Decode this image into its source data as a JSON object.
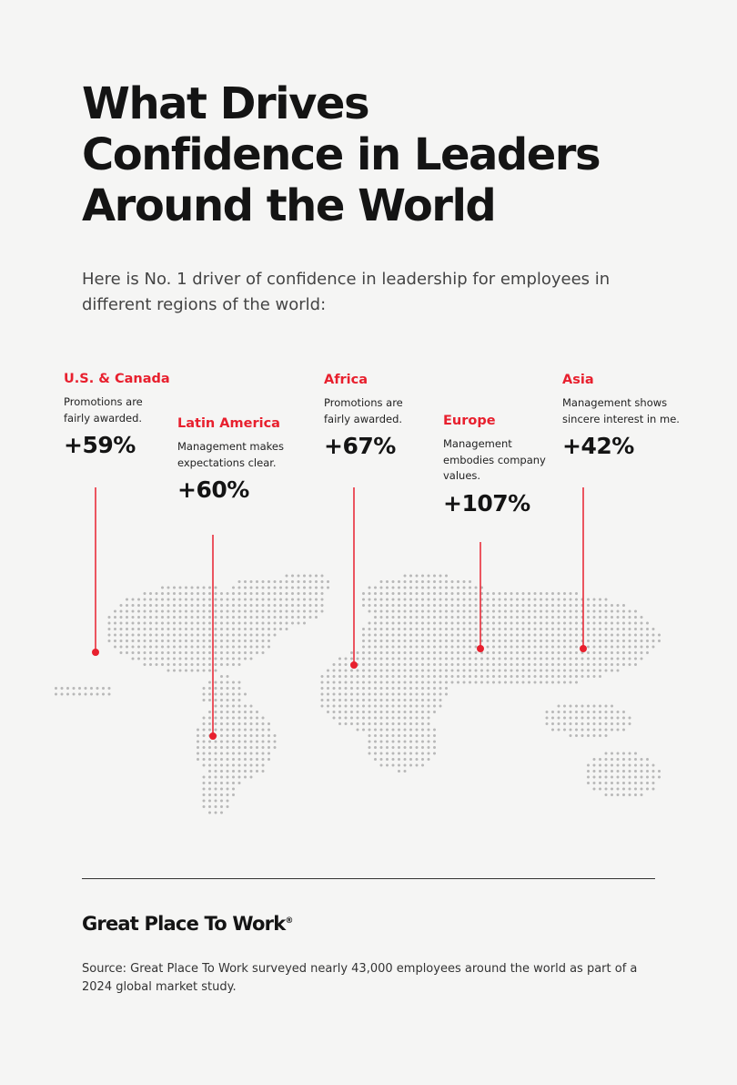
{
  "header": {
    "title": [
      "What Drives",
      "Confidence in Leaders",
      "Around the World"
    ],
    "subtitle": [
      "Here is No. 1 driver of confidence in leadership for employees in",
      "different regions of the world:"
    ]
  },
  "regions": [
    {
      "name": "U.S. & Canada",
      "driver": [
        "Promotions are",
        "fairly awarded."
      ],
      "value": "+59%"
    },
    {
      "name": "Latin America",
      "driver": [
        "Management makes",
        "expectations clear."
      ],
      "value": "+60%"
    },
    {
      "name": "Africa",
      "driver": [
        "Promotions are",
        "fairly awarded."
      ],
      "value": "+67%"
    },
    {
      "name": "Europe",
      "driver": [
        "Management",
        "embodies company",
        "values."
      ],
      "value": "+107%"
    },
    {
      "name": "Asia",
      "driver": [
        "Management shows",
        "sincere interest in me."
      ],
      "value": "+42%"
    }
  ],
  "footer": {
    "logo": "Great Place To Work",
    "logo_mark": "®",
    "source": [
      "Source: Great Place To Work surveyed nearly 43,000 employees around the world as part of a",
      "2024 global market study."
    ]
  }
}
